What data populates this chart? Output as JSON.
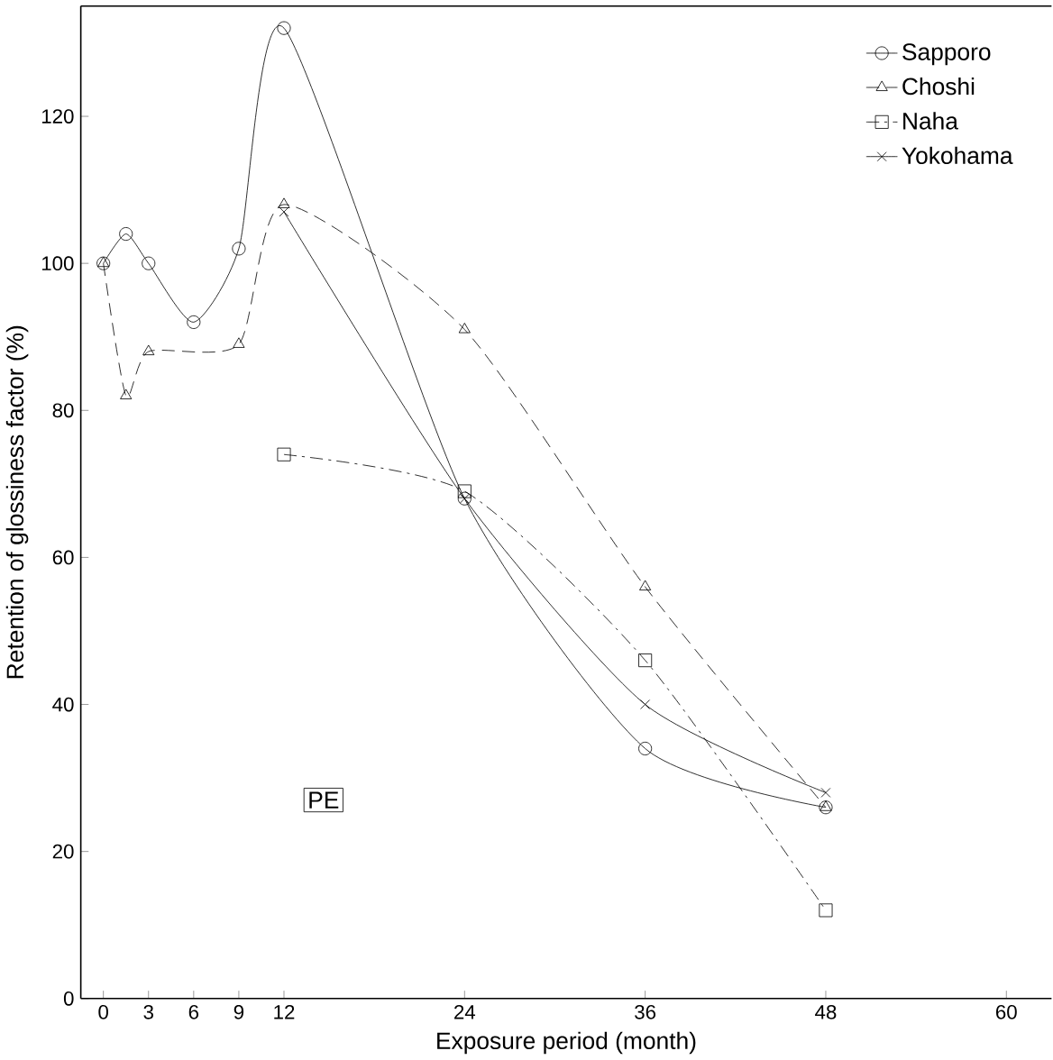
{
  "chart_data": {
    "type": "line",
    "xlabel": "Exposure period (month)",
    "ylabel": "Retention of glossiness factor (%)",
    "xlim": [
      -1.5,
      63
    ],
    "ylim": [
      0,
      135
    ],
    "xticks": [
      0,
      3,
      6,
      9,
      12,
      24,
      36,
      48,
      60
    ],
    "yticks": [
      0,
      20,
      40,
      60,
      80,
      100,
      120
    ],
    "legend": "top right",
    "grid": false,
    "annotations": [
      "PE"
    ],
    "series": [
      {
        "name": "Sapporo",
        "color": "#000000",
        "marker": "circle",
        "line_style": "solid",
        "x": [
          0,
          1.5,
          3,
          6,
          9,
          12,
          24,
          36,
          48
        ],
        "values": [
          100,
          104,
          100,
          92,
          102,
          132,
          68,
          34,
          26
        ]
      },
      {
        "name": "Choshi",
        "color": "#000000",
        "marker": "triangle",
        "line_style": "dashed",
        "x": [
          0,
          1.5,
          3,
          9,
          12,
          24,
          36,
          48
        ],
        "values": [
          100,
          82,
          88,
          89,
          108,
          91,
          56,
          26
        ]
      },
      {
        "name": "Naha",
        "color": "#000000",
        "marker": "square",
        "line_style": "dashdotted",
        "x": [
          12,
          24,
          36,
          48
        ],
        "values": [
          74,
          69,
          46,
          12
        ]
      },
      {
        "name": "Yokohama",
        "color": "#000000",
        "marker": "cross",
        "line_style": "solid",
        "x": [
          12,
          24,
          36,
          48
        ],
        "values": [
          107,
          68,
          40,
          28
        ]
      }
    ]
  }
}
